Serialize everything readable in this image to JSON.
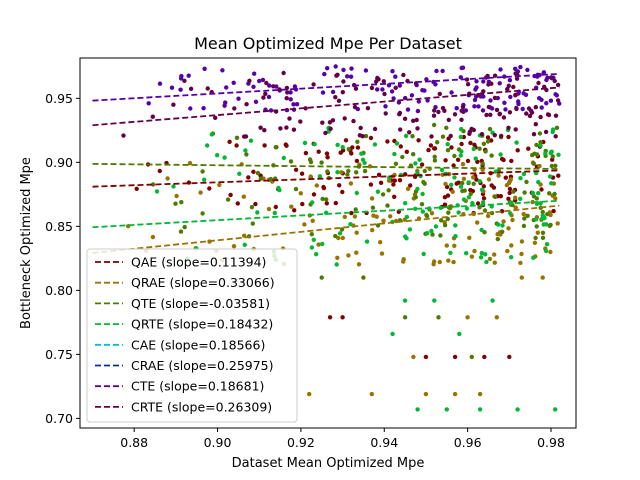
{
  "chart_data": {
    "type": "scatter",
    "title": "Mean Optimized Mpe Per Dataset",
    "xlabel": "Dataset Mean Optimized Mpe",
    "ylabel": "Bottleneck Optimized Mpe",
    "xlim": [
      0.867,
      0.986
    ],
    "ylim": [
      0.6925,
      0.9815
    ],
    "xticks": [
      0.88,
      0.9,
      0.92,
      0.94,
      0.96,
      0.98
    ],
    "xtick_labels": [
      "0.88",
      "0.90",
      "0.92",
      "0.94",
      "0.96",
      "0.98"
    ],
    "yticks": [
      0.7,
      0.75,
      0.8,
      0.85,
      0.9,
      0.95
    ],
    "ytick_labels": [
      "0.70",
      "0.75",
      "0.80",
      "0.85",
      "0.90",
      "0.95"
    ],
    "grid": false,
    "legend_position": "lower-left",
    "series": [
      {
        "name": "QAE (slope=0.11394)",
        "color": "#800000",
        "trend": [
          [
            0.87,
            0.881
          ],
          [
            0.982,
            0.8937
          ]
        ],
        "cluster": {
          "x": [
            0.87,
            0.982
          ],
          "y": [
            0.86,
            0.92
          ]
        },
        "outliers": [
          [
            0.927,
            0.779
          ],
          [
            0.93,
            0.779
          ],
          [
            0.95,
            0.748
          ],
          [
            0.957,
            0.748
          ],
          [
            0.964,
            0.748
          ],
          [
            0.97,
            0.748
          ]
        ]
      },
      {
        "name": "QRAE (slope=0.33066)",
        "color": "#997300",
        "trend": [
          [
            0.87,
            0.8292
          ],
          [
            0.982,
            0.8662
          ]
        ],
        "cluster": {
          "x": [
            0.87,
            0.982
          ],
          "y": [
            0.82,
            0.9
          ]
        },
        "outliers": [
          [
            0.922,
            0.719
          ],
          [
            0.937,
            0.719
          ],
          [
            0.95,
            0.719
          ],
          [
            0.957,
            0.719
          ],
          [
            0.963,
            0.719
          ],
          [
            0.947,
            0.748
          ],
          [
            0.96,
            0.779
          ],
          [
            0.967,
            0.779
          ],
          [
            0.973,
            0.81
          ],
          [
            0.978,
            0.81
          ],
          [
            0.955,
            0.835
          ]
        ]
      },
      {
        "name": "QTE (slope=-0.03581)",
        "color": "#4d7a00",
        "trend": [
          [
            0.87,
            0.8988
          ],
          [
            0.982,
            0.8948
          ]
        ],
        "cluster": {
          "x": [
            0.88,
            0.982
          ],
          "y": [
            0.84,
            0.93
          ]
        },
        "outliers": [
          [
            0.925,
            0.81
          ],
          [
            0.935,
            0.81
          ],
          [
            0.945,
            0.779
          ],
          [
            0.953,
            0.779
          ],
          [
            0.961,
            0.748
          ]
        ]
      },
      {
        "name": "QRTE (slope=0.18432)",
        "color": "#00b833",
        "trend": [
          [
            0.87,
            0.8493
          ],
          [
            0.982,
            0.87
          ]
        ],
        "cluster": {
          "x": [
            0.88,
            0.982
          ],
          "y": [
            0.82,
            0.93
          ]
        },
        "outliers": [
          [
            0.948,
            0.707
          ],
          [
            0.955,
            0.707
          ],
          [
            0.963,
            0.707
          ],
          [
            0.972,
            0.707
          ],
          [
            0.981,
            0.707
          ],
          [
            0.942,
            0.766
          ],
          [
            0.958,
            0.766
          ],
          [
            0.945,
            0.792
          ],
          [
            0.952,
            0.792
          ],
          [
            0.966,
            0.792
          ]
        ]
      },
      {
        "name": "CAE (slope=0.18566)",
        "color": "#00bcd4",
        "trend": null,
        "cluster": null,
        "outliers": []
      },
      {
        "name": "CRAE (slope=0.25975)",
        "color": "#003399",
        "trend": null,
        "cluster": null,
        "outliers": []
      },
      {
        "name": "CTE (slope=0.18681)",
        "color": "#5500aa",
        "trend": [
          [
            0.87,
            0.9482
          ],
          [
            0.982,
            0.9691
          ]
        ],
        "cluster": {
          "x": [
            0.87,
            0.982
          ],
          "y": [
            0.94,
            0.975
          ]
        },
        "outliers": []
      },
      {
        "name": "CRTE (slope=0.26309)",
        "color": "#660044",
        "trend": [
          [
            0.87,
            0.929
          ],
          [
            0.982,
            0.9585
          ]
        ],
        "cluster": {
          "x": [
            0.87,
            0.982
          ],
          "y": [
            0.92,
            0.97
          ]
        },
        "outliers": []
      }
    ]
  }
}
